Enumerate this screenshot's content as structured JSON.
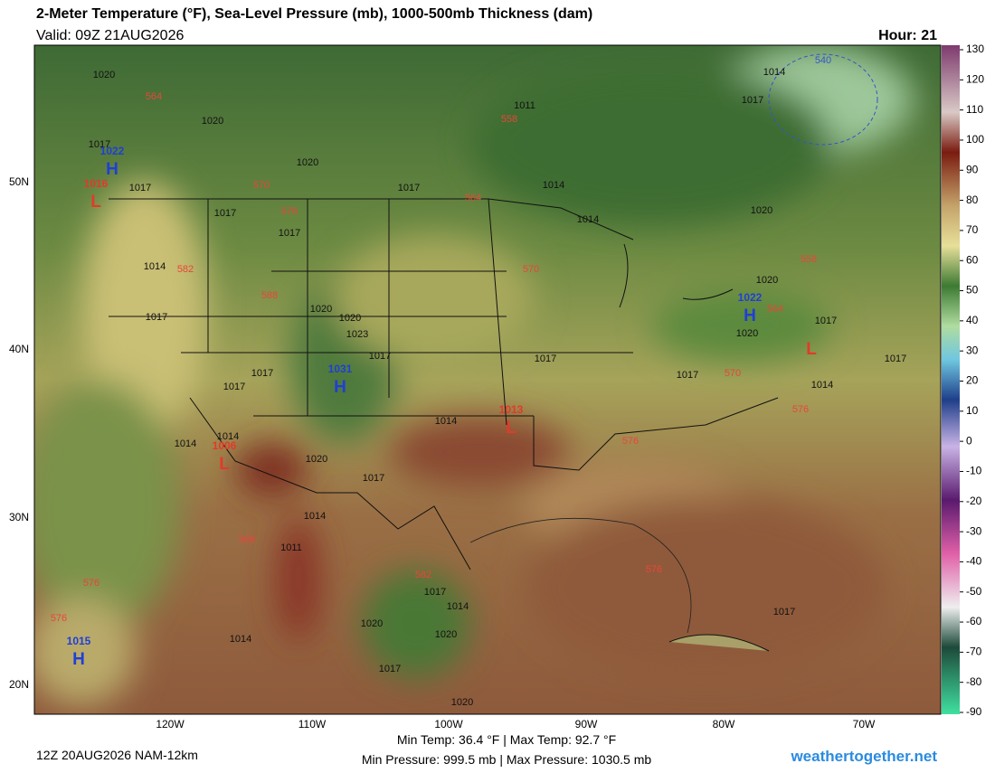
{
  "header": {
    "title": "2-Meter Temperature (°F), Sea-Level Pressure (mb), 1000-500mb Thickness (dam)",
    "valid": "Valid: 09Z 21AUG2026",
    "hour": "Hour: 21"
  },
  "colorbar": {
    "ticks": [
      130,
      120,
      110,
      100,
      90,
      80,
      70,
      60,
      50,
      40,
      30,
      20,
      10,
      0,
      -10,
      -20,
      -30,
      -40,
      -50,
      -60,
      -70,
      -80,
      -90
    ]
  },
  "lat_labels": [
    "50N",
    "40N",
    "30N",
    "20N"
  ],
  "lon_labels": [
    "120W",
    "110W",
    "100W",
    "90W",
    "80W",
    "70W"
  ],
  "pressure_labels": [
    "1020",
    "1020",
    "1017",
    "1017",
    "1020",
    "1017",
    "1011",
    "1014",
    "1017",
    "1017",
    "1014",
    "1014",
    "1020",
    "1020",
    "1020",
    "1020",
    "1023",
    "1017",
    "1017",
    "1017",
    "1017",
    "1017",
    "1017",
    "1014",
    "1017",
    "1017",
    "1020",
    "1014",
    "1014",
    "1014",
    "1020",
    "1017",
    "1014",
    "1011",
    "1017",
    "1014",
    "1020",
    "1020",
    "1014",
    "1017",
    "1020",
    "1017",
    "1014",
    "1017"
  ],
  "thickness_labels": [
    "564",
    "558",
    "570",
    "576",
    "564",
    "582",
    "588",
    "570",
    "558",
    "564",
    "570",
    "576",
    "576",
    "588",
    "582",
    "576",
    "576",
    "576",
    "540"
  ],
  "centers": [
    {
      "symbol": "H",
      "pressure": "1022"
    },
    {
      "symbol": "L",
      "pressure": "1016"
    },
    {
      "symbol": "H",
      "pressure": "1031"
    },
    {
      "symbol": "L",
      "pressure": "1013"
    },
    {
      "symbol": "L",
      "pressure": "1006"
    },
    {
      "symbol": "H",
      "pressure": "1022"
    },
    {
      "symbol": "L"
    },
    {
      "symbol": "H",
      "pressure": "1015"
    }
  ],
  "footer": {
    "run": "12Z 20AUG2026 NAM-12km",
    "temps": "Min Temp:  36.4 °F | Max Temp:  92.7 °F",
    "pressure": "Min Pressure: 999.5 mb | Max Pressure: 1030.5 mb",
    "site": "weathertogether.net"
  }
}
